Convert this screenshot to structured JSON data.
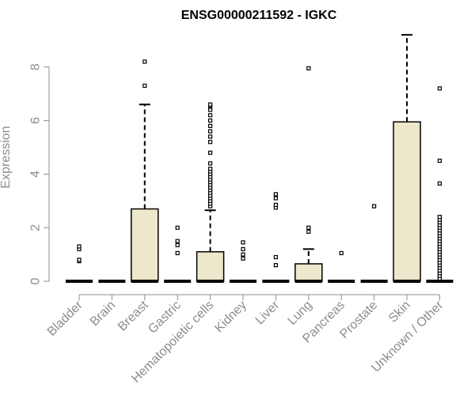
{
  "chart_data": {
    "type": "boxplot",
    "title": "ENSG00000211592 - IGKC",
    "ylabel": "Expression",
    "xlabel": "",
    "ylim": [
      -0.3,
      9.6
    ],
    "yticks": [
      0,
      2,
      4,
      6,
      8
    ],
    "grid": false,
    "colors": {
      "box_fill": "#ede7cc",
      "stroke": "#000000",
      "axis": "#8c8c8c",
      "title": "#000000"
    },
    "categories": [
      "Bladder",
      "Brain",
      "Breast",
      "Gastric",
      "Hematopoietic cells",
      "Kidney",
      "Liver",
      "Lung",
      "Pancreas",
      "Prostate",
      "Skin",
      "Unknown / Other"
    ],
    "boxes": [
      {
        "name": "Bladder",
        "min": 0,
        "q1": 0,
        "median": 0,
        "q3": 0,
        "max": 0,
        "outliers": [
          0.75,
          0.8,
          1.2,
          1.3
        ]
      },
      {
        "name": "Brain",
        "min": 0,
        "q1": 0,
        "median": 0,
        "q3": 0,
        "max": 0,
        "outliers": []
      },
      {
        "name": "Breast",
        "min": 0,
        "q1": 0,
        "median": 0,
        "q3": 2.7,
        "max": 6.6,
        "outliers": [
          7.3,
          8.2
        ]
      },
      {
        "name": "Gastric",
        "min": 0,
        "q1": 0,
        "median": 0,
        "q3": 0,
        "max": 0,
        "outliers": [
          1.05,
          1.35,
          1.5,
          2.0
        ]
      },
      {
        "name": "Hematopoietic cells",
        "min": 0,
        "q1": 0,
        "median": 0,
        "q3": 1.1,
        "max": 2.65,
        "outliers": [
          2.8,
          2.9,
          3.0,
          3.1,
          3.2,
          3.3,
          3.4,
          3.5,
          3.6,
          3.7,
          3.8,
          3.9,
          4.0,
          4.1,
          4.2,
          4.4,
          4.8,
          5.2,
          5.4,
          5.6,
          5.8,
          6.0,
          6.2,
          6.4,
          6.55,
          6.6
        ]
      },
      {
        "name": "Kidney",
        "min": 0,
        "q1": 0,
        "median": 0,
        "q3": 0,
        "max": 0,
        "outliers": [
          0.85,
          1.0,
          1.2,
          1.45
        ]
      },
      {
        "name": "Liver",
        "min": 0,
        "q1": 0,
        "median": 0,
        "q3": 0,
        "max": 0,
        "outliers": [
          0.6,
          0.9,
          2.75,
          2.85,
          3.1,
          3.25
        ]
      },
      {
        "name": "Lung",
        "min": 0,
        "q1": 0,
        "median": 0,
        "q3": 0.65,
        "max": 1.2,
        "outliers": [
          1.85,
          2.0,
          7.95
        ]
      },
      {
        "name": "Pancreas",
        "min": 0,
        "q1": 0,
        "median": 0,
        "q3": 0,
        "max": 0,
        "outliers": [
          1.05
        ]
      },
      {
        "name": "Prostate",
        "min": 0,
        "q1": 0,
        "median": 0,
        "q3": 0,
        "max": 0,
        "outliers": [
          2.8
        ]
      },
      {
        "name": "Skin",
        "min": 0,
        "q1": 0,
        "median": 0,
        "q3": 5.95,
        "max": 9.2,
        "outliers": []
      },
      {
        "name": "Unknown / Other",
        "min": 0,
        "q1": 0,
        "median": 0,
        "q3": 0,
        "max": 0,
        "outliers": [
          0.1,
          0.2,
          0.3,
          0.4,
          0.5,
          0.6,
          0.7,
          0.8,
          0.9,
          1.0,
          1.1,
          1.2,
          1.3,
          1.4,
          1.5,
          1.6,
          1.7,
          1.8,
          1.9,
          2.0,
          2.1,
          2.2,
          2.3,
          2.4,
          3.65,
          4.5,
          7.2
        ]
      }
    ]
  }
}
